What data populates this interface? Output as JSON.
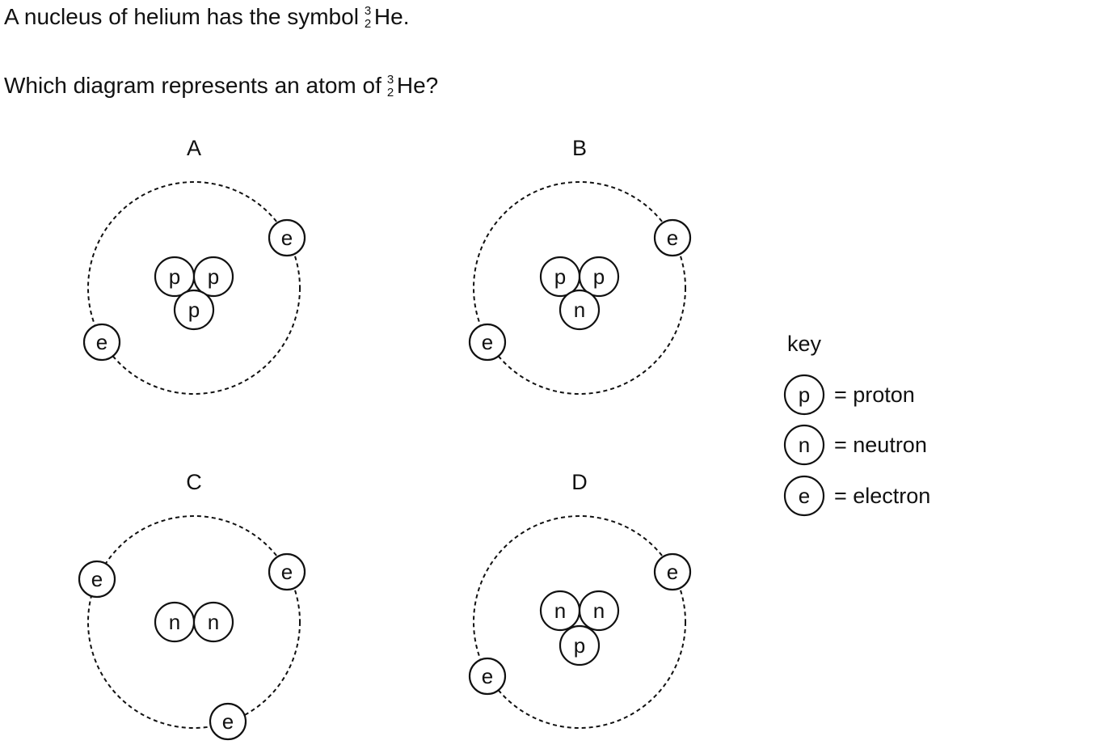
{
  "question": {
    "line1_text": "A nucleus of helium has the symbol",
    "line1_end": "He.",
    "line2_text": "Which diagram represents an atom of",
    "line2_end": "He?",
    "mass_number": "3",
    "atomic_number": "2"
  },
  "options": [
    {
      "label": "A",
      "nucleus": [
        "p",
        "p",
        "p"
      ],
      "electrons": [
        "e",
        "e"
      ]
    },
    {
      "label": "B",
      "nucleus": [
        "p",
        "p",
        "n"
      ],
      "electrons": [
        "e",
        "e"
      ]
    },
    {
      "label": "C",
      "nucleus": [
        "n",
        "n"
      ],
      "electrons": [
        "e",
        "e",
        "e"
      ]
    },
    {
      "label": "D",
      "nucleus": [
        "n",
        "n",
        "p"
      ],
      "electrons": [
        "e",
        "e"
      ]
    }
  ],
  "key": {
    "title": "key",
    "items": [
      {
        "symbol": "p",
        "text": "= proton"
      },
      {
        "symbol": "n",
        "text": "= neutron"
      },
      {
        "symbol": "e",
        "text": "= electron"
      }
    ]
  }
}
